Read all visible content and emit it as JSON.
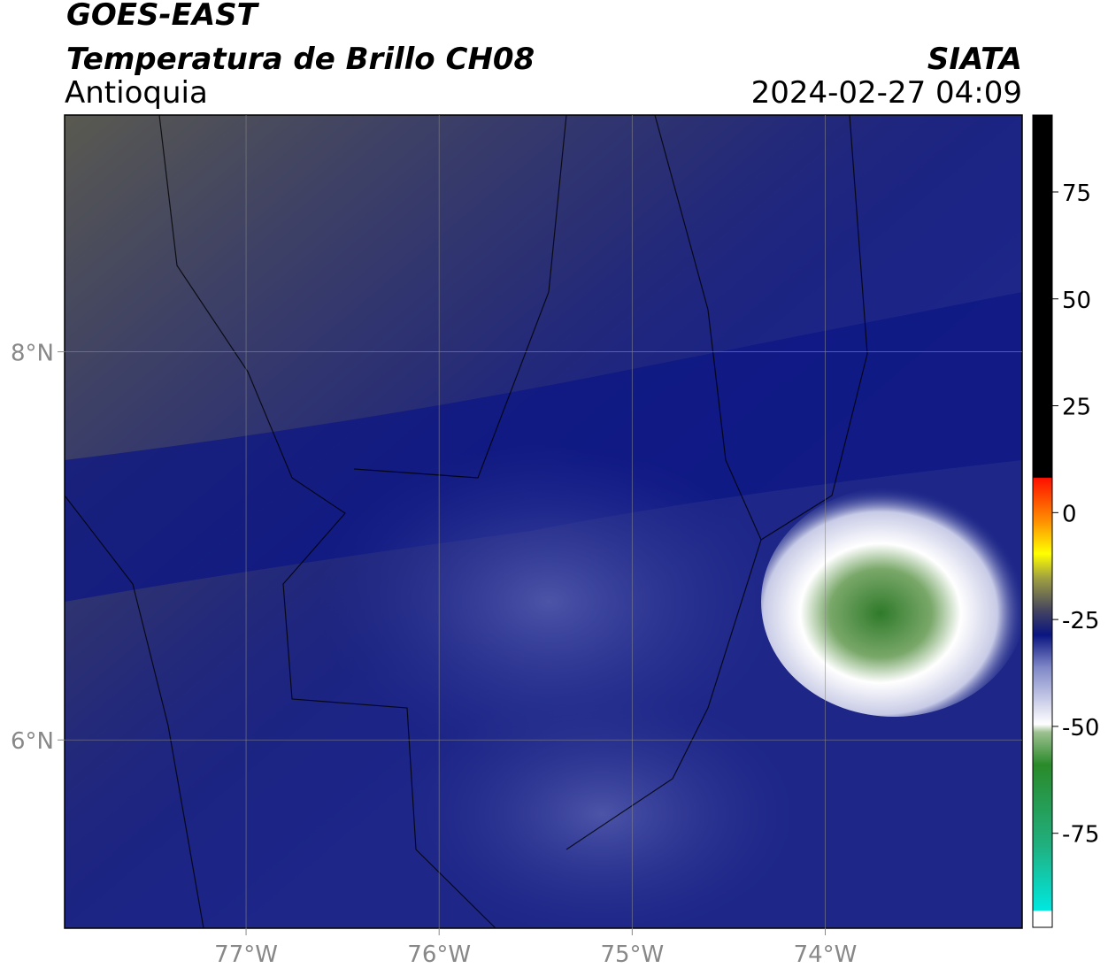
{
  "header": {
    "title": "GOES-EAST",
    "subtitle": "Temperatura de Brillo CH08",
    "region": "Antioquia",
    "source": "SIATA",
    "datetime": "2024-02-27 04:09"
  },
  "map": {
    "lonlim": [
      -77.94,
      -72.98
    ],
    "latlim": [
      5.03,
      9.22
    ],
    "lonticks": [
      {
        "value": -77,
        "label": "77°W"
      },
      {
        "value": -76,
        "label": "76°W"
      },
      {
        "value": -75,
        "label": "75°W"
      },
      {
        "value": -74,
        "label": "74°W"
      }
    ],
    "latticks": [
      {
        "value": 8,
        "label": "8°N"
      },
      {
        "value": 6,
        "label": "6°N"
      }
    ]
  },
  "colorbar": {
    "clim": [
      -97,
      93
    ],
    "ticks": [
      75,
      50,
      25,
      0,
      -25,
      -50,
      -75
    ]
  }
}
